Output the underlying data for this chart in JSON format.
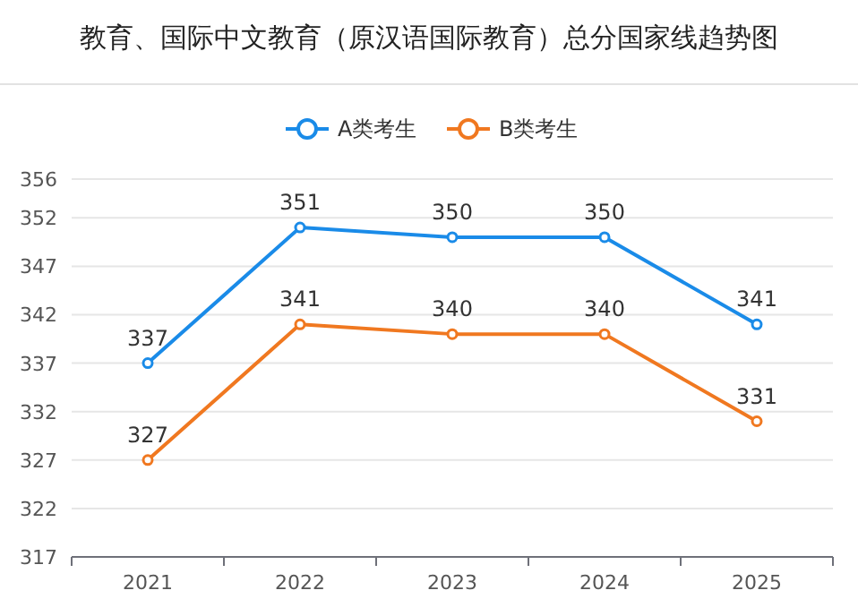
{
  "chart_data": {
    "type": "line",
    "title": "教育、国际中文教育（原汉语国际教育）总分国家线趋势图",
    "categories": [
      "2021",
      "2022",
      "2023",
      "2024",
      "2025"
    ],
    "series": [
      {
        "name": "A类考生",
        "color": "#1a8be8",
        "values": [
          337,
          351,
          350,
          350,
          341
        ]
      },
      {
        "name": "B类考生",
        "color": "#f07820",
        "values": [
          327,
          341,
          340,
          340,
          331
        ]
      }
    ],
    "ylim": [
      317,
      356
    ],
    "yticks": [
      317,
      322,
      327,
      332,
      337,
      342,
      347,
      352,
      356
    ],
    "grid": "y",
    "legend": "top",
    "marker": "circle",
    "line_style": "solid",
    "data_labels": true
  }
}
